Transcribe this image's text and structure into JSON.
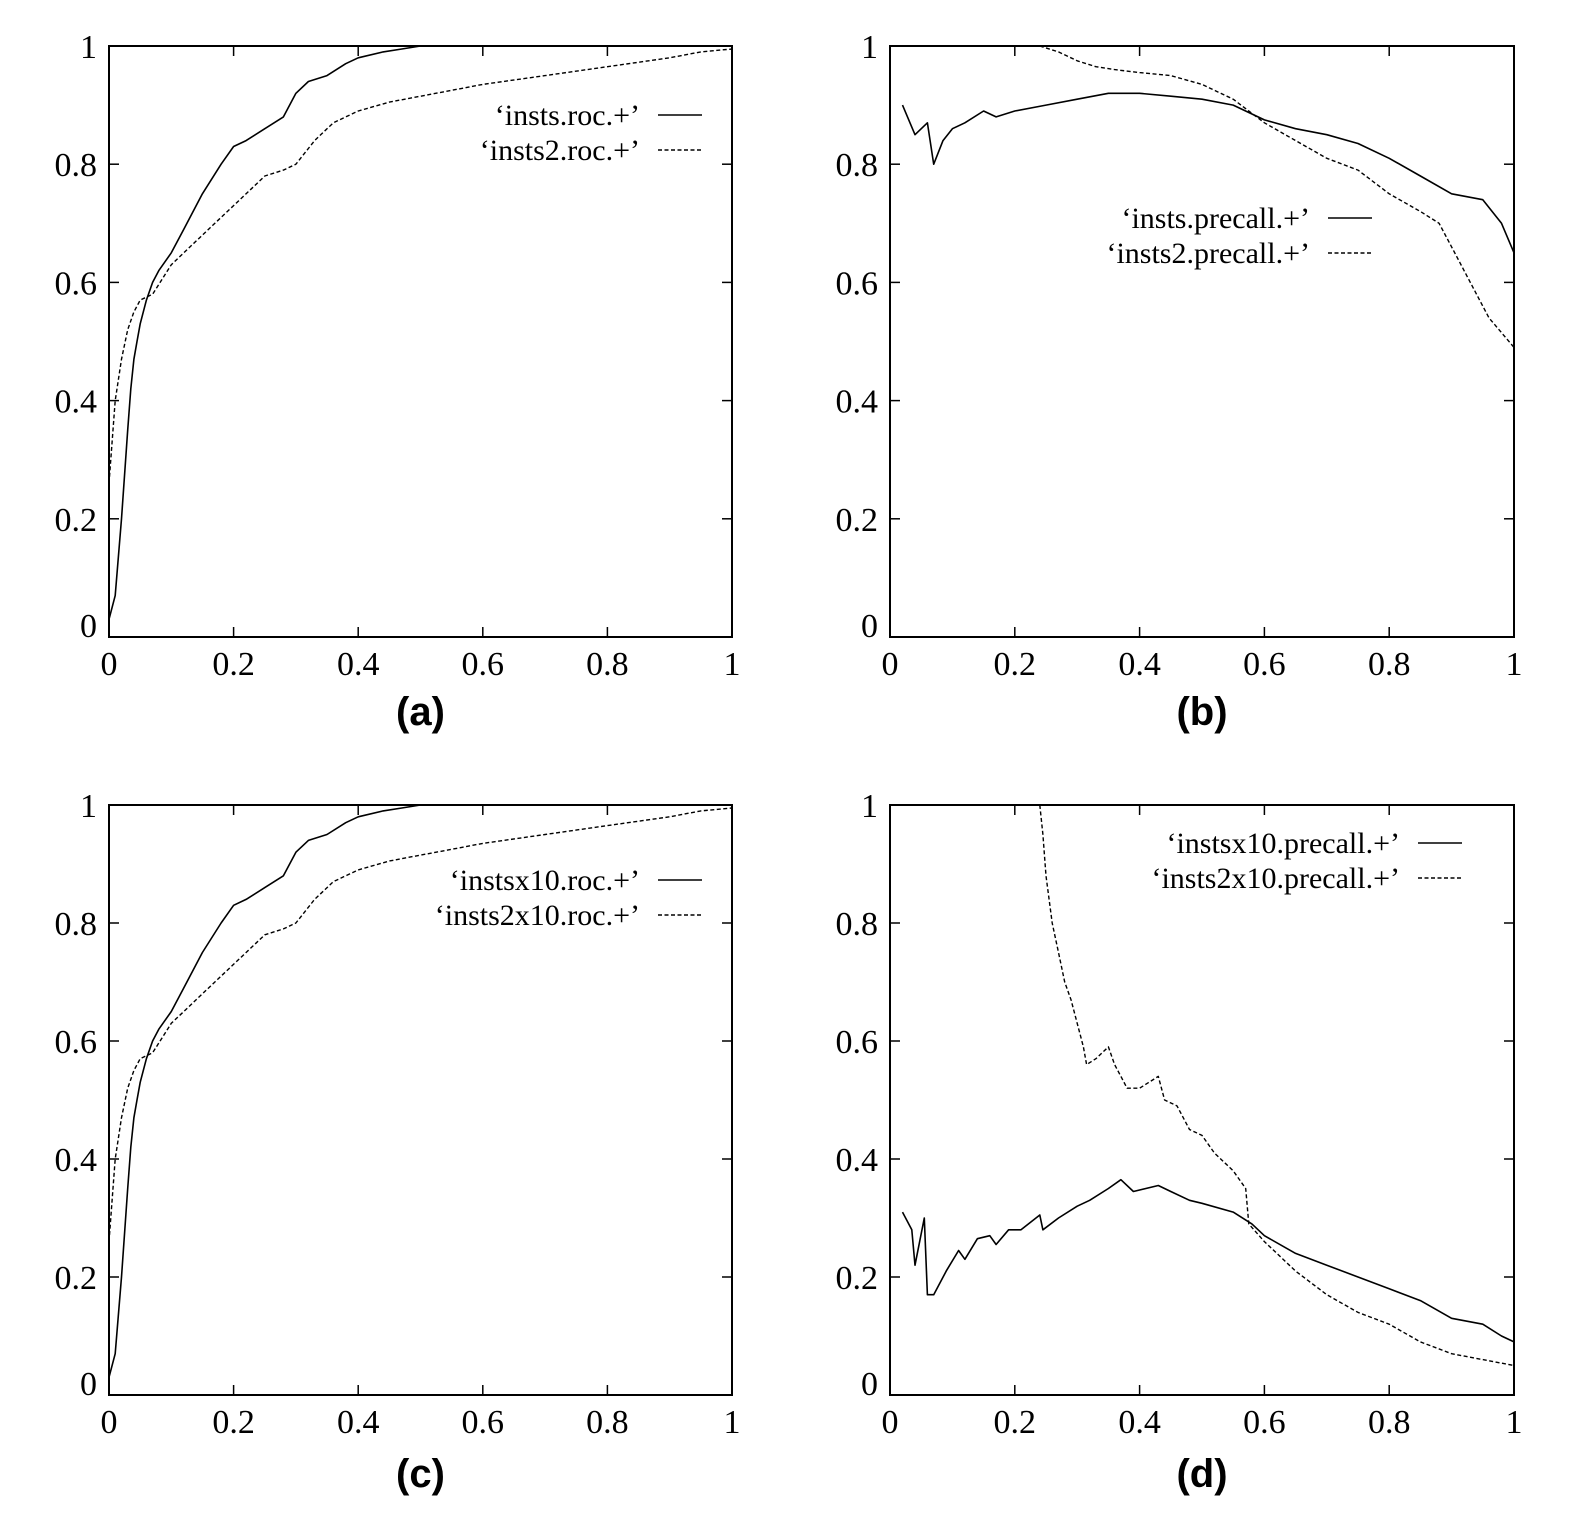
{
  "chart_data": [
    {
      "type": "line",
      "panel_label": "(a)",
      "xlim": [
        0,
        1
      ],
      "ylim": [
        0,
        1
      ],
      "xticks": [
        "0",
        "0.2",
        "0.4",
        "0.6",
        "0.8",
        "1"
      ],
      "yticks": [
        "0",
        "0.2",
        "0.4",
        "0.6",
        "0.8",
        "1"
      ],
      "legend_position": "top-right",
      "series": [
        {
          "name": "‘insts.roc.+’",
          "style": "solid",
          "x": [
            0,
            0.01,
            0.02,
            0.03,
            0.035,
            0.04,
            0.045,
            0.05,
            0.06,
            0.07,
            0.08,
            0.1,
            0.12,
            0.15,
            0.18,
            0.2,
            0.22,
            0.25,
            0.28,
            0.3,
            0.32,
            0.35,
            0.38,
            0.4,
            0.44,
            0.47,
            0.5,
            0.52
          ],
          "y": [
            0.03,
            0.07,
            0.2,
            0.35,
            0.42,
            0.47,
            0.5,
            0.53,
            0.57,
            0.6,
            0.62,
            0.65,
            0.69,
            0.75,
            0.8,
            0.83,
            0.84,
            0.86,
            0.88,
            0.92,
            0.94,
            0.95,
            0.97,
            0.98,
            0.99,
            0.995,
            1.0,
            1.0
          ]
        },
        {
          "name": "‘insts2.roc.+’",
          "style": "dashed",
          "x": [
            0,
            0.005,
            0.01,
            0.02,
            0.03,
            0.04,
            0.05,
            0.07,
            0.1,
            0.12,
            0.15,
            0.18,
            0.2,
            0.22,
            0.25,
            0.28,
            0.3,
            0.33,
            0.36,
            0.4,
            0.45,
            0.5,
            0.55,
            0.6,
            0.7,
            0.8,
            0.9,
            0.95,
            1.0
          ],
          "y": [
            0.26,
            0.33,
            0.4,
            0.47,
            0.52,
            0.55,
            0.57,
            0.58,
            0.63,
            0.65,
            0.68,
            0.71,
            0.73,
            0.75,
            0.78,
            0.79,
            0.8,
            0.84,
            0.87,
            0.89,
            0.905,
            0.915,
            0.925,
            0.935,
            0.95,
            0.965,
            0.98,
            0.99,
            0.995
          ]
        }
      ]
    },
    {
      "type": "line",
      "panel_label": "(b)",
      "xlim": [
        0,
        1
      ],
      "ylim": [
        0,
        1
      ],
      "xticks": [
        "0",
        "0.2",
        "0.4",
        "0.6",
        "0.8",
        "1"
      ],
      "yticks": [
        "0",
        "0.2",
        "0.4",
        "0.6",
        "0.8",
        "1"
      ],
      "legend_position": "center-right",
      "series": [
        {
          "name": "‘insts.precall.+’",
          "style": "solid",
          "x": [
            0.02,
            0.04,
            0.06,
            0.07,
            0.085,
            0.1,
            0.12,
            0.15,
            0.17,
            0.2,
            0.25,
            0.3,
            0.35,
            0.4,
            0.45,
            0.5,
            0.55,
            0.6,
            0.65,
            0.7,
            0.75,
            0.8,
            0.85,
            0.9,
            0.95,
            0.98,
            1.0
          ],
          "y": [
            0.9,
            0.85,
            0.87,
            0.8,
            0.84,
            0.86,
            0.87,
            0.89,
            0.88,
            0.89,
            0.9,
            0.91,
            0.92,
            0.92,
            0.915,
            0.91,
            0.9,
            0.875,
            0.86,
            0.85,
            0.835,
            0.81,
            0.78,
            0.75,
            0.74,
            0.7,
            0.65
          ]
        },
        {
          "name": "‘insts2.precall.+’",
          "style": "dashed",
          "x": [
            0.24,
            0.27,
            0.3,
            0.33,
            0.36,
            0.4,
            0.45,
            0.5,
            0.55,
            0.6,
            0.65,
            0.7,
            0.75,
            0.8,
            0.85,
            0.88,
            0.9,
            0.93,
            0.96,
            1.0
          ],
          "y": [
            1.0,
            0.99,
            0.975,
            0.965,
            0.96,
            0.955,
            0.95,
            0.935,
            0.91,
            0.87,
            0.84,
            0.81,
            0.79,
            0.75,
            0.72,
            0.7,
            0.66,
            0.6,
            0.54,
            0.49
          ]
        }
      ]
    },
    {
      "type": "line",
      "panel_label": "(c)",
      "xlim": [
        0,
        1
      ],
      "ylim": [
        0,
        1
      ],
      "xticks": [
        "0",
        "0.2",
        "0.4",
        "0.6",
        "0.8",
        "1"
      ],
      "yticks": [
        "0",
        "0.2",
        "0.4",
        "0.6",
        "0.8",
        "1"
      ],
      "legend_position": "top-right",
      "series": [
        {
          "name": "‘instsx10.roc.+’",
          "style": "solid",
          "x": [
            0,
            0.01,
            0.02,
            0.03,
            0.035,
            0.04,
            0.045,
            0.05,
            0.06,
            0.07,
            0.08,
            0.1,
            0.12,
            0.15,
            0.18,
            0.2,
            0.22,
            0.25,
            0.28,
            0.3,
            0.32,
            0.35,
            0.38,
            0.4,
            0.44,
            0.47,
            0.5,
            0.52
          ],
          "y": [
            0.03,
            0.07,
            0.2,
            0.35,
            0.42,
            0.47,
            0.5,
            0.53,
            0.57,
            0.6,
            0.62,
            0.65,
            0.69,
            0.75,
            0.8,
            0.83,
            0.84,
            0.86,
            0.88,
            0.92,
            0.94,
            0.95,
            0.97,
            0.98,
            0.99,
            0.995,
            1.0,
            1.0
          ]
        },
        {
          "name": "‘insts2x10.roc.+’",
          "style": "dashed",
          "x": [
            0,
            0.005,
            0.01,
            0.02,
            0.03,
            0.04,
            0.05,
            0.07,
            0.1,
            0.12,
            0.15,
            0.18,
            0.2,
            0.22,
            0.25,
            0.28,
            0.3,
            0.33,
            0.36,
            0.4,
            0.45,
            0.5,
            0.55,
            0.6,
            0.7,
            0.8,
            0.9,
            0.95,
            1.0
          ],
          "y": [
            0.26,
            0.33,
            0.4,
            0.47,
            0.52,
            0.55,
            0.57,
            0.58,
            0.63,
            0.65,
            0.68,
            0.71,
            0.73,
            0.75,
            0.78,
            0.79,
            0.8,
            0.84,
            0.87,
            0.89,
            0.905,
            0.915,
            0.925,
            0.935,
            0.95,
            0.965,
            0.98,
            0.99,
            0.995
          ]
        }
      ]
    },
    {
      "type": "line",
      "panel_label": "(d)",
      "xlim": [
        0,
        1
      ],
      "ylim": [
        0,
        1
      ],
      "xticks": [
        "0",
        "0.2",
        "0.4",
        "0.6",
        "0.8",
        "1"
      ],
      "yticks": [
        "0",
        "0.2",
        "0.4",
        "0.6",
        "0.8",
        "1"
      ],
      "legend_position": "top-right",
      "series": [
        {
          "name": "‘instsx10.precall.+’",
          "style": "solid",
          "x": [
            0.02,
            0.035,
            0.04,
            0.055,
            0.06,
            0.07,
            0.09,
            0.11,
            0.12,
            0.14,
            0.16,
            0.17,
            0.19,
            0.21,
            0.24,
            0.245,
            0.27,
            0.3,
            0.32,
            0.35,
            0.37,
            0.39,
            0.43,
            0.45,
            0.48,
            0.5,
            0.55,
            0.58,
            0.6,
            0.65,
            0.7,
            0.75,
            0.8,
            0.85,
            0.9,
            0.95,
            0.98,
            1.0
          ],
          "y": [
            0.31,
            0.28,
            0.22,
            0.3,
            0.17,
            0.17,
            0.21,
            0.245,
            0.23,
            0.265,
            0.27,
            0.255,
            0.28,
            0.28,
            0.305,
            0.28,
            0.3,
            0.32,
            0.33,
            0.35,
            0.365,
            0.345,
            0.355,
            0.345,
            0.33,
            0.325,
            0.31,
            0.29,
            0.27,
            0.24,
            0.22,
            0.2,
            0.18,
            0.16,
            0.13,
            0.12,
            0.1,
            0.09
          ]
        },
        {
          "name": "‘insts2x10.precall.+’",
          "style": "dashed",
          "x": [
            0.24,
            0.245,
            0.25,
            0.26,
            0.27,
            0.28,
            0.29,
            0.3,
            0.31,
            0.315,
            0.33,
            0.35,
            0.36,
            0.37,
            0.38,
            0.4,
            0.43,
            0.44,
            0.46,
            0.48,
            0.5,
            0.52,
            0.55,
            0.57,
            0.575,
            0.6,
            0.65,
            0.7,
            0.75,
            0.8,
            0.85,
            0.9,
            0.95,
            1.0
          ],
          "y": [
            1.0,
            0.95,
            0.88,
            0.8,
            0.75,
            0.7,
            0.67,
            0.63,
            0.59,
            0.56,
            0.57,
            0.59,
            0.56,
            0.54,
            0.52,
            0.52,
            0.54,
            0.5,
            0.49,
            0.45,
            0.44,
            0.41,
            0.38,
            0.35,
            0.29,
            0.26,
            0.21,
            0.17,
            0.14,
            0.12,
            0.09,
            0.07,
            0.06,
            0.05
          ]
        }
      ]
    }
  ]
}
